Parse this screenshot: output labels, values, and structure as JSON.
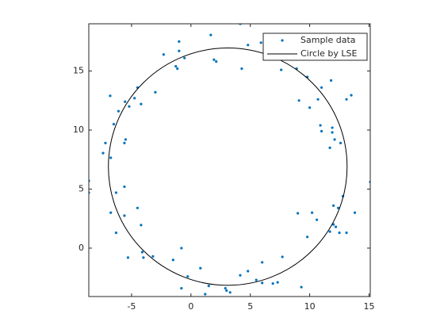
{
  "chart_data": {
    "type": "scatter",
    "xlim": [
      -8.6,
      15.1
    ],
    "ylim": [
      -4.1,
      19
    ],
    "xticks": [
      -5,
      0,
      5,
      10,
      15
    ],
    "yticks": [
      0,
      5,
      10,
      15
    ],
    "legend": "top-right",
    "series": [
      {
        "name": "Sample data",
        "color": "#0072bd",
        "x": [
          4.15,
          1.67,
          -1.0,
          4.8,
          5.9,
          -1.0,
          -2.3,
          1.94,
          2.13,
          -0.54,
          -1.27,
          -1.14,
          4.28,
          7.6,
          8.9,
          9.8,
          11.8,
          11.0,
          -3.0,
          -4.5,
          -6.8,
          -4.75,
          -5.55,
          -5.2,
          -4.2,
          -6.1,
          9.1,
          10.7,
          13.1,
          13.5,
          10.0,
          -6.5,
          10.9,
          11.0,
          11.9,
          11.9,
          12.1,
          11.7,
          12.6,
          -7.2,
          -7.4,
          -5.5,
          -5.6,
          -6.75,
          -5.6,
          -8.6,
          -6.3,
          -8.6,
          15.1,
          12.8,
          12.0,
          12.4,
          13.8,
          -4.5,
          -6.75,
          -5.6,
          9.0,
          10.2,
          10.6,
          12.0,
          12.2,
          11.7,
          12.5,
          13.1,
          -4.2,
          -6.3,
          9.8,
          -5.3,
          -4.1,
          -4.0,
          -3.2,
          -0.8,
          -1.5,
          0.8,
          -0.27,
          6.0,
          7.7,
          4.8,
          4.15,
          5.5,
          6.0,
          6.9,
          7.3,
          9.3,
          1.5,
          2.9,
          3.3,
          3.0,
          -0.8,
          1.2
        ],
        "values": [
          19.0,
          18.05,
          17.5,
          17.2,
          17.4,
          16.7,
          16.4,
          15.96,
          15.8,
          16.1,
          15.4,
          15.2,
          15.2,
          15.1,
          15.2,
          14.5,
          14.2,
          13.6,
          13.2,
          13.6,
          12.9,
          12.7,
          12.4,
          12.0,
          12.2,
          11.6,
          12.5,
          12.6,
          12.6,
          12.95,
          11.9,
          10.5,
          10.4,
          9.9,
          10.2,
          9.8,
          9.2,
          8.5,
          8.9,
          8.9,
          8.05,
          9.2,
          8.9,
          7.65,
          5.2,
          5.7,
          4.7,
          4.7,
          5.6,
          4.4,
          3.6,
          3.4,
          3.0,
          3.4,
          3.0,
          2.75,
          2.95,
          3.0,
          2.4,
          2.0,
          1.8,
          1.4,
          1.3,
          1.3,
          1.95,
          1.3,
          0.95,
          -0.8,
          -0.34,
          -0.8,
          -0.7,
          0.0,
          -1.0,
          -1.7,
          -2.4,
          -1.2,
          -0.74,
          -1.95,
          -2.3,
          -2.7,
          -2.95,
          -3.0,
          -2.9,
          -3.3,
          -3.2,
          -3.4,
          -3.75,
          -3.6,
          -3.4,
          -3.9
        ]
      },
      {
        "name": "Circle by LSE",
        "color": "#000000",
        "center": [
          3.1,
          6.9
        ],
        "radius": 10.05
      }
    ]
  }
}
